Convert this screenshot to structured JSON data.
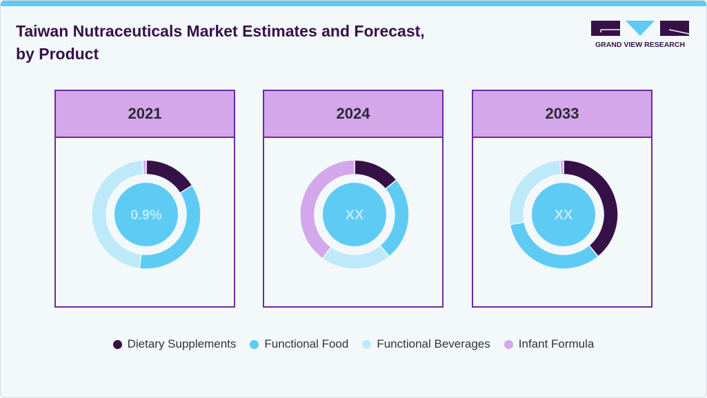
{
  "title": "Taiwan Nutraceuticals Market Estimates and Forecast, by Product",
  "logo_text": "GRAND VIEW RESEARCH",
  "colors": {
    "accent": "#5ecbf5",
    "header": "#d3a7ea",
    "border": "#6a2aa0",
    "title": "#361148"
  },
  "chart_data": {
    "type": "donut",
    "categories": [
      "Dietary Supplements",
      "Functional Food",
      "Functional Beverages",
      "Infant Formula"
    ],
    "colors": [
      "#361148",
      "#5ecbf5",
      "#bde9f8",
      "#d3a7ea"
    ],
    "legend_position": "bottom",
    "charts": [
      {
        "year": "2021",
        "center_label": "0.9%",
        "values": [
          16,
          36,
          47,
          1
        ]
      },
      {
        "year": "2024",
        "center_label": "XX",
        "values": [
          14,
          25,
          21,
          40
        ]
      },
      {
        "year": "2033",
        "center_label": "XX",
        "values": [
          39,
          33,
          27,
          1
        ]
      }
    ]
  }
}
